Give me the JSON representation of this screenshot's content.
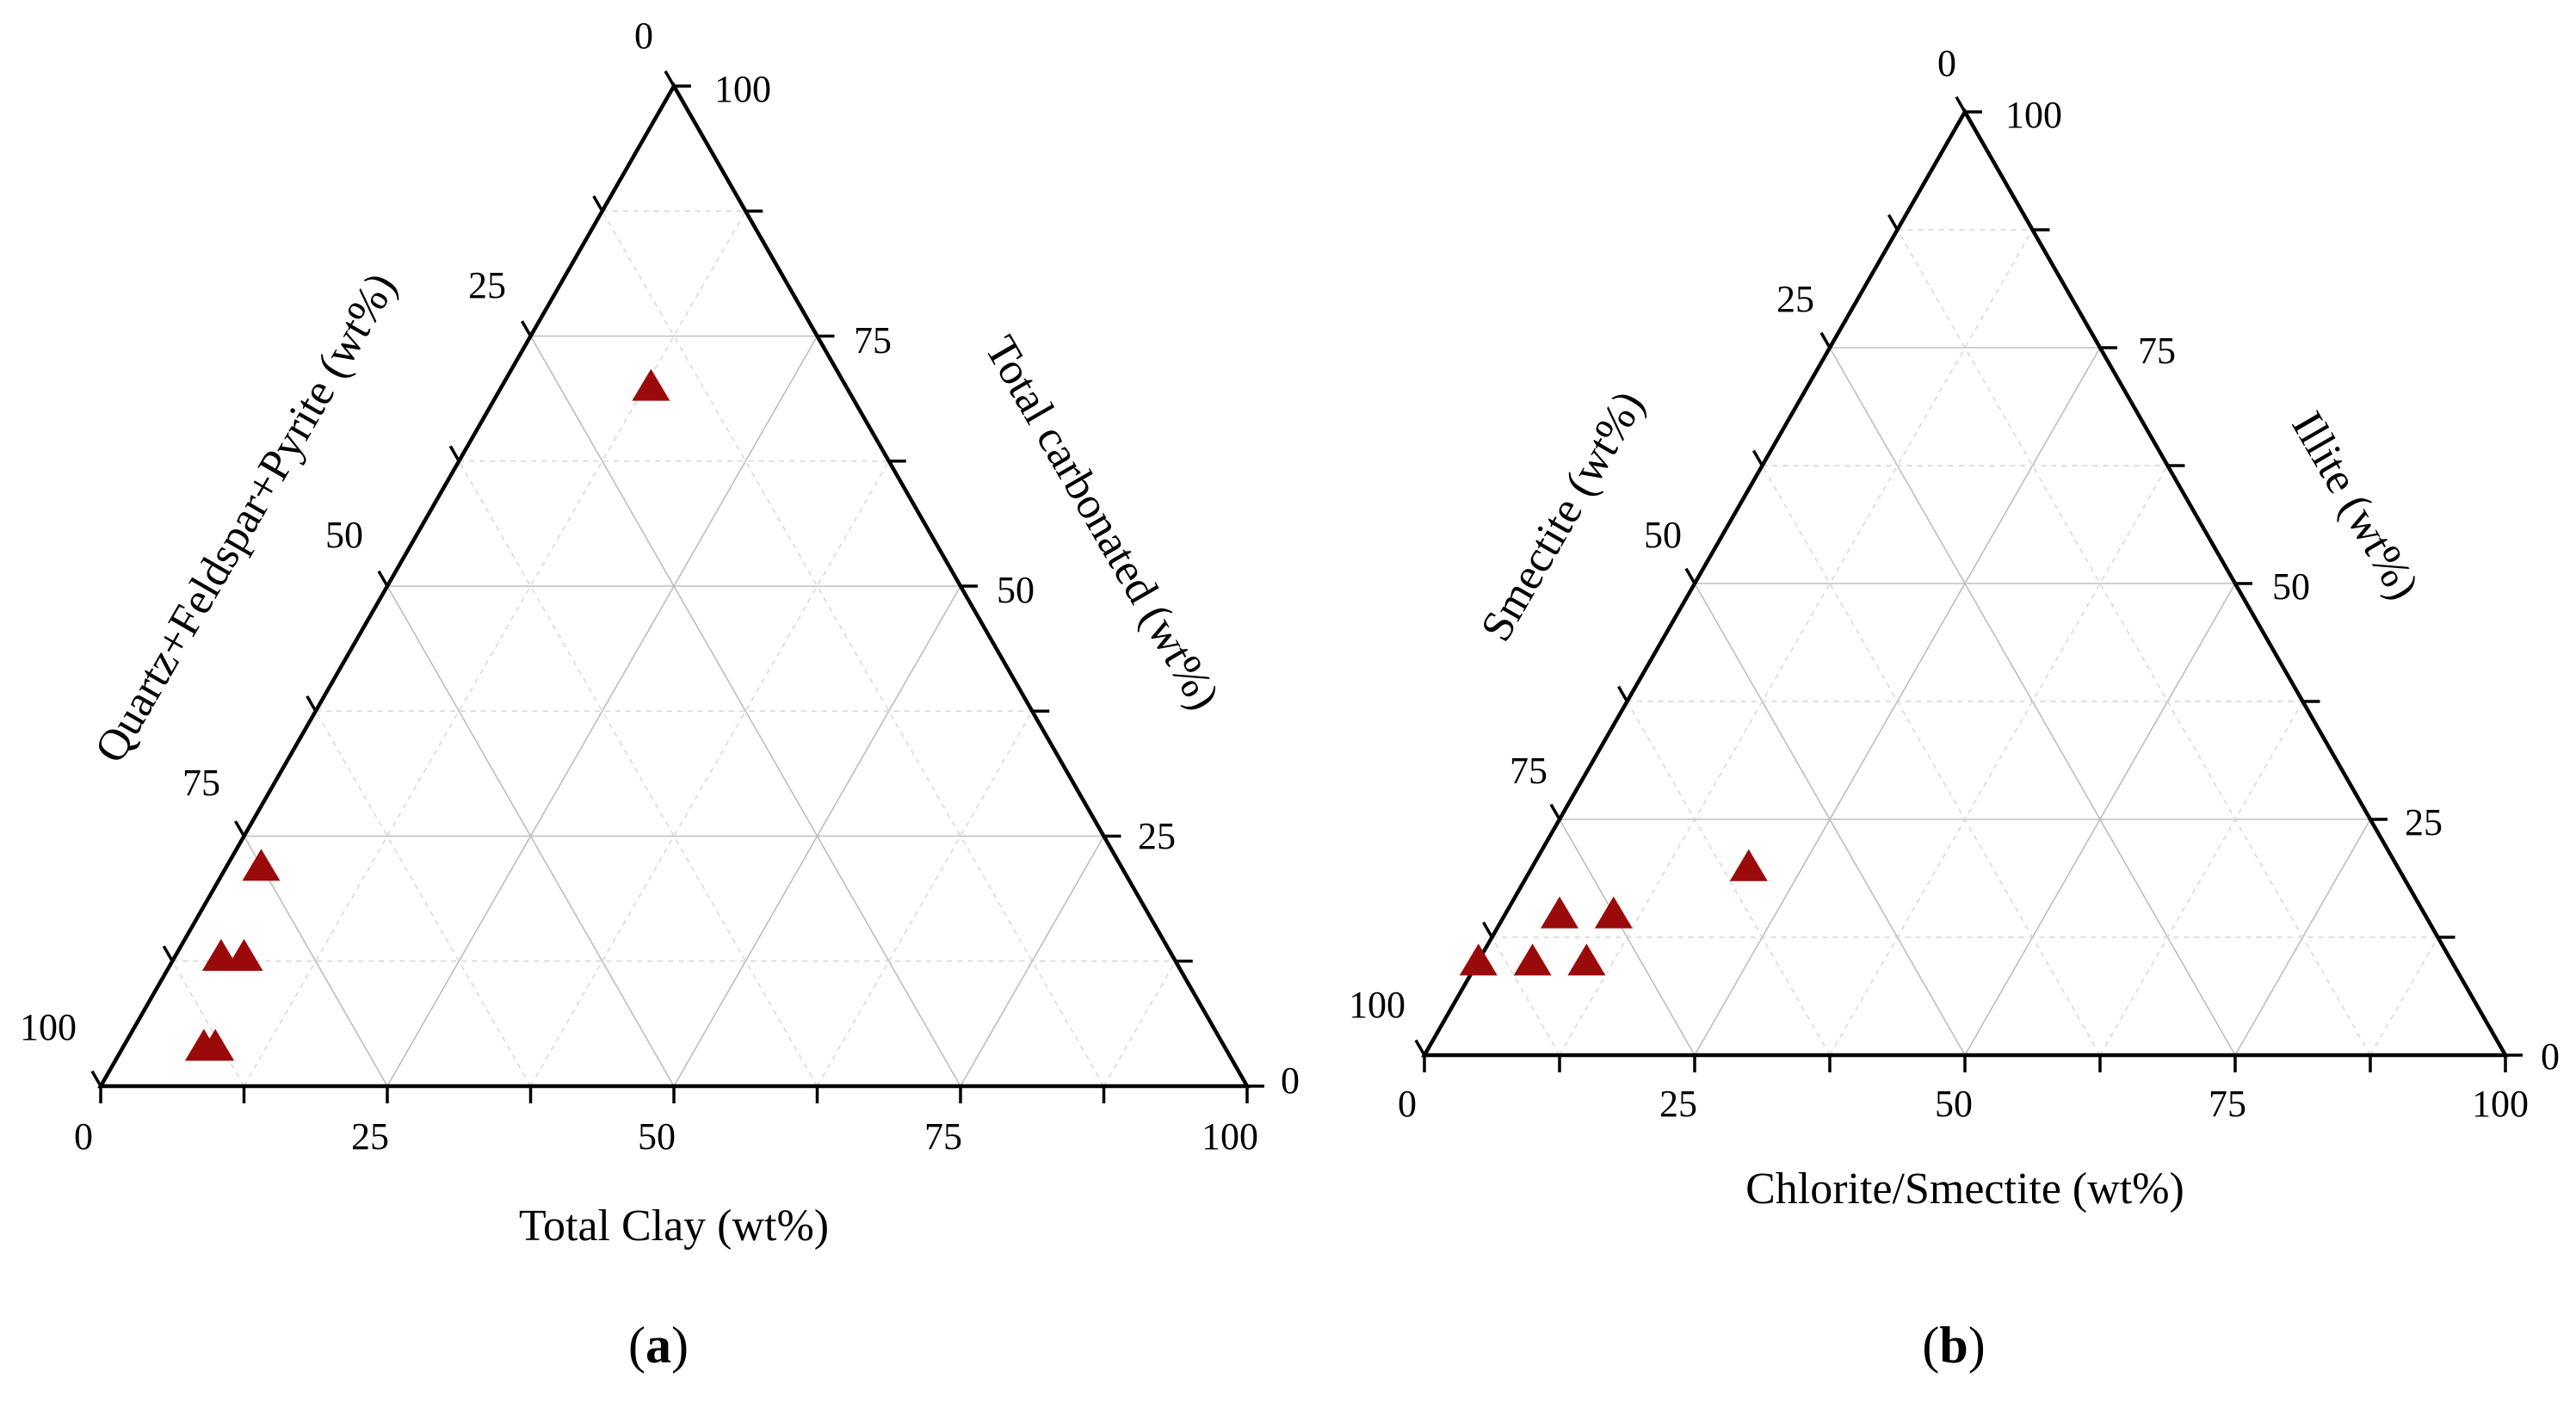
{
  "chart_data": [
    {
      "type": "ternary-scatter",
      "panel_label_open": "(",
      "panel_label_letter": "a",
      "panel_label_close": ")",
      "axes": {
        "bottom": {
          "label": "Total Clay (wt%)"
        },
        "left": {
          "label": "Quartz+Feldspar+Pyrite (wt%)"
        },
        "right": {
          "label": "Total carbonated (wt%)"
        }
      },
      "ticks": [
        "0",
        "25",
        "50",
        "75",
        "100"
      ],
      "range": [
        0,
        100
      ],
      "grid": true,
      "marker": {
        "shape": "triangle",
        "color": "#9B0A0A"
      },
      "points": [
        {
          "clay": 13,
          "qfp": 17,
          "carb": 70
        },
        {
          "clay": 3,
          "qfp": 75,
          "carb": 22
        },
        {
          "clay": 4,
          "qfp": 83,
          "carb": 13
        },
        {
          "clay": 6,
          "qfp": 81,
          "carb": 13
        },
        {
          "clay": 7,
          "qfp": 89,
          "carb": 4
        },
        {
          "clay": 8,
          "qfp": 88,
          "carb": 4
        }
      ]
    },
    {
      "type": "ternary-scatter",
      "panel_label_open": "(",
      "panel_label_letter": "b",
      "panel_label_close": ")",
      "axes": {
        "bottom": {
          "label": "Chlorite/Smectite (wt%)"
        },
        "left": {
          "label": "Smectite (wt%)"
        },
        "right": {
          "label": "Illite (wt%)"
        }
      },
      "ticks": [
        "0",
        "25",
        "50",
        "75",
        "100"
      ],
      "range": [
        0,
        100
      ],
      "grid": true,
      "marker": {
        "shape": "triangle",
        "color": "#9B0A0A"
      },
      "points": [
        {
          "cs": 0,
          "smectite": 90,
          "illite": 10
        },
        {
          "cs": 5,
          "smectite": 85,
          "illite": 10
        },
        {
          "cs": 10,
          "smectite": 80,
          "illite": 10
        },
        {
          "cs": 5,
          "smectite": 80,
          "illite": 15
        },
        {
          "cs": 10,
          "smectite": 75,
          "illite": 15
        },
        {
          "cs": 20,
          "smectite": 60,
          "illite": 20
        }
      ]
    }
  ]
}
